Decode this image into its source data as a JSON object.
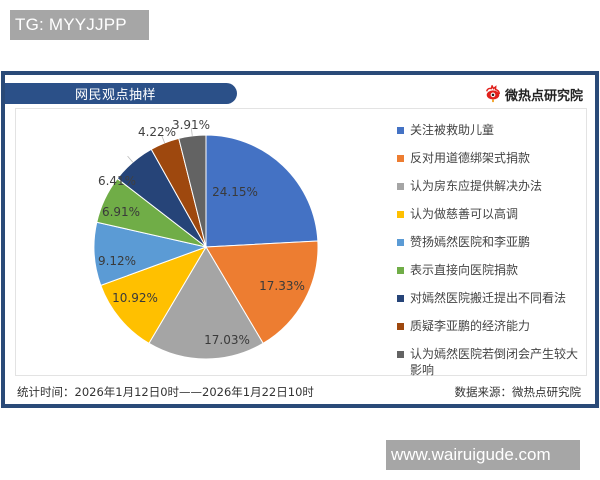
{
  "watermarks": {
    "top": "TG: MYYJJPP",
    "bottom": "www.wairuigude.com"
  },
  "header": {
    "title": "网民观点抽样",
    "brand_name": "微热点研究院",
    "brand_icon": "weibo-eye-icon"
  },
  "footer": {
    "time_range": "统计时间：2026年1月12日0时——2026年1月22日10时",
    "source": "数据来源：微热点研究院"
  },
  "colors": {
    "frame": "#2a4a78",
    "title_bar": "#2b5088"
  },
  "chart_data": {
    "type": "pie",
    "title": "网民观点抽样",
    "start_angle": "12 o'clock, clockwise",
    "legend_position": "right",
    "slices": [
      {
        "label": "关注被救助儿童",
        "value": 24.15,
        "display": "24.15%",
        "color": "#4472c4"
      },
      {
        "label": "反对用道德绑架式捐款",
        "value": 17.33,
        "display": "17.33%",
        "color": "#ed7d31"
      },
      {
        "label": "认为房东应提供解决办法",
        "value": 17.03,
        "display": "17.03%",
        "color": "#a5a5a5"
      },
      {
        "label": "认为做慈善可以高调",
        "value": 10.92,
        "display": "10.92%",
        "color": "#ffc000"
      },
      {
        "label": "赞扬嫣然医院和李亚鹏",
        "value": 9.12,
        "display": "9.12%",
        "color": "#5b9bd5"
      },
      {
        "label": "表示直接向医院捐款",
        "value": 6.91,
        "display": "6.91%",
        "color": "#70ad47"
      },
      {
        "label": "对嫣然医院搬迁提出不同看法",
        "value": 6.41,
        "display": "6.41%",
        "color": "#264478"
      },
      {
        "label": "质疑李亚鹏的经济能力",
        "value": 4.22,
        "display": "4.22%",
        "color": "#9e480e"
      },
      {
        "label": "认为嫣然医院若倒闭会产生较大影响",
        "value": 3.91,
        "display": "3.91%",
        "color": "#636363"
      }
    ]
  }
}
